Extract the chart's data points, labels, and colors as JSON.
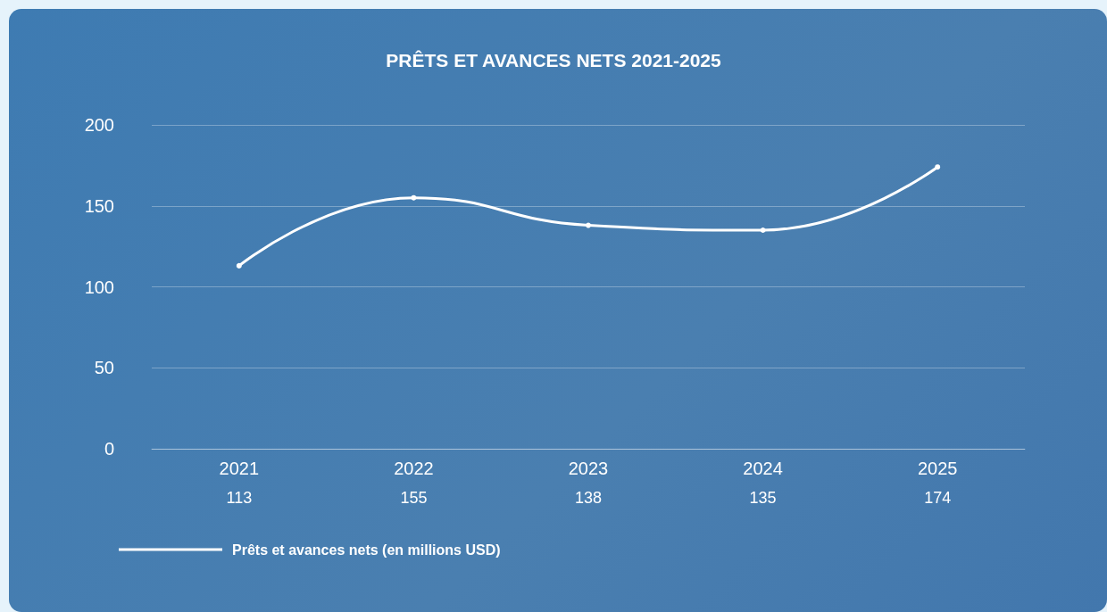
{
  "chart_data": {
    "type": "line",
    "title": "PRÊTS ET AVANCES NETS 2021-2025",
    "categories": [
      "2021",
      "2022",
      "2023",
      "2024",
      "2025"
    ],
    "series": [
      {
        "name": "Prêts et avances nets (en millions USD)",
        "color": "#ffffff",
        "values": [
          113,
          155,
          138,
          135,
          174
        ]
      }
    ],
    "ylim": [
      0,
      200
    ],
    "yticks": [
      0,
      50,
      100,
      150,
      200
    ],
    "grid": "y",
    "legend": "bottom left",
    "marker": "circle",
    "line_style": "solid",
    "data_labels": true
  }
}
